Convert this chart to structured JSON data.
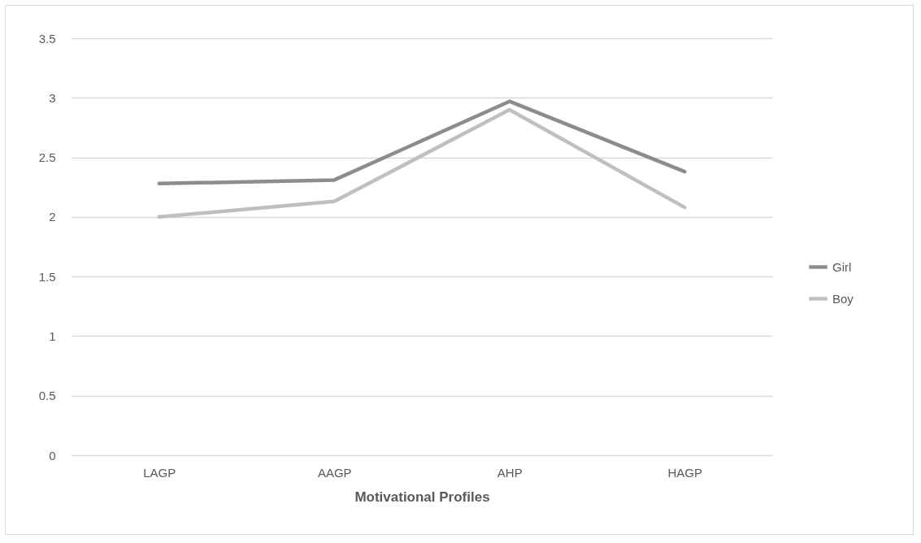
{
  "chart_data": {
    "type": "line",
    "xlabel": "Motivational Profiles",
    "categories": [
      "LAGP",
      "AAGP",
      "AHP",
      "HAGP"
    ],
    "series": [
      {
        "name": "Girl",
        "color": "#8c8c8c",
        "values": [
          2.28,
          2.31,
          2.97,
          2.38
        ]
      },
      {
        "name": "Boy",
        "color": "#bfbfbf",
        "values": [
          2.0,
          2.13,
          2.9,
          2.08
        ]
      }
    ],
    "ylim": [
      0,
      3.5
    ],
    "yticks": [
      0,
      0.5,
      1,
      1.5,
      2,
      2.5,
      3,
      3.5
    ],
    "grid": "y",
    "legend": "right",
    "marker": "none",
    "line_style": "solid"
  }
}
